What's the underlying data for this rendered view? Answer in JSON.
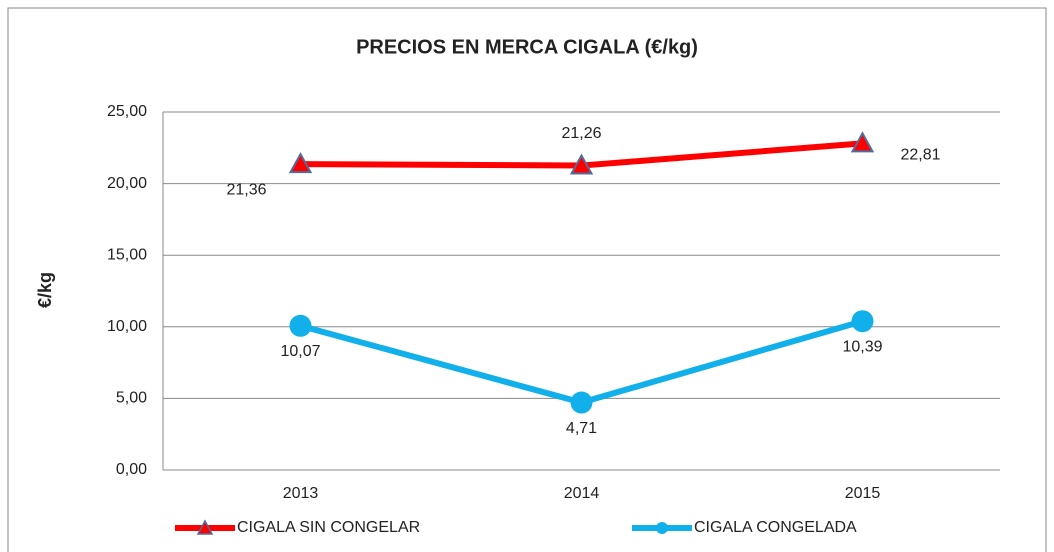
{
  "chart_data": {
    "type": "line",
    "title": "PRECIOS EN MERCA CIGALA (€/kg)",
    "y_label": "€/kg",
    "categories": [
      "2013",
      "2014",
      "2015"
    ],
    "series": [
      {
        "name": "CIGALA SIN CONGELAR",
        "color": "#ff0000",
        "marker": "triangle",
        "values": [
          21.36,
          21.26,
          22.81
        ],
        "value_labels": [
          "21,36",
          "21,26",
          "22,81"
        ]
      },
      {
        "name": "CIGALA CONGELADA",
        "color": "#12b0ea",
        "marker": "circle",
        "values": [
          10.07,
          4.71,
          10.39
        ],
        "value_labels": [
          "10,07",
          "4,71",
          "10,39"
        ]
      }
    ],
    "ylim": [
      0,
      25
    ],
    "yticks": [
      {
        "value": 0,
        "label": "0,00"
      },
      {
        "value": 5,
        "label": "5,00"
      },
      {
        "value": 10,
        "label": "10,00"
      },
      {
        "value": 15,
        "label": "15,00"
      },
      {
        "value": 20,
        "label": "20,00"
      },
      {
        "value": 25,
        "label": "25,00"
      }
    ],
    "grid": true,
    "legend": "bottom"
  }
}
